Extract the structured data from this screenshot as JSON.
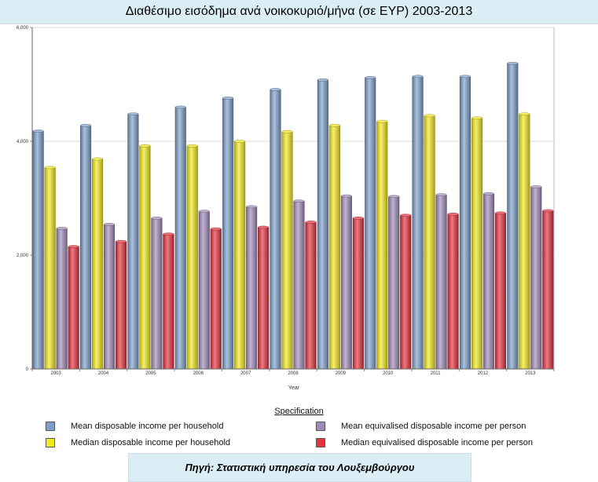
{
  "header": {
    "title": "Διαθέσιμο εισόδημα ανά νοικοκυριό/μήνα (σε ΕΥΡ) 2003-2013"
  },
  "chart_data": {
    "type": "bar",
    "title": "Διαθέσιμο εισόδημα ανά νοικοκυριό/μήνα (σε ΕΥΡ) 2003-2013",
    "xlabel": "Year",
    "ylabel": "",
    "ylim": [
      0,
      6000
    ],
    "yticks": [
      0,
      2000,
      4000,
      6000
    ],
    "ytick_labels": [
      "0",
      "2,000",
      "4,000",
      "6,000"
    ],
    "grid": true,
    "legend_title": "Specification",
    "legend_position": "bottom",
    "categories": [
      "2003",
      "2004",
      "2005",
      "2006",
      "2007",
      "2008",
      "2009",
      "2010",
      "2011",
      "2012",
      "2013"
    ],
    "series": [
      {
        "name": "Mean disposable income per household",
        "color": "#7e9fc9",
        "values": [
          4180,
          4280,
          4480,
          4600,
          4760,
          4910,
          5080,
          5120,
          5140,
          5140,
          5370
        ]
      },
      {
        "name": "Median disposable income per household",
        "color": "#f2e81f",
        "values": [
          3540,
          3690,
          3920,
          3920,
          4000,
          4170,
          4280,
          4350,
          4450,
          4410,
          4480
        ]
      },
      {
        "name": "Mean equivalised disposable income per person",
        "color": "#a08bb8",
        "values": [
          2470,
          2540,
          2650,
          2770,
          2850,
          2950,
          3040,
          3030,
          3060,
          3080,
          3200
        ]
      },
      {
        "name": "Median equivalised disposable income per person",
        "color": "#e5333e",
        "values": [
          2150,
          2240,
          2370,
          2460,
          2490,
          2580,
          2650,
          2700,
          2720,
          2740,
          2780
        ]
      }
    ]
  },
  "legend": {
    "title": "Specification",
    "items": [
      {
        "label": "Mean disposable income per household",
        "color": "#7e9fc9"
      },
      {
        "label": "Median disposable income per household",
        "color": "#f2e81f"
      },
      {
        "label": "Mean equivalised disposable income per person",
        "color": "#a08bb8"
      },
      {
        "label": "Median equivalised disposable income per person",
        "color": "#e5333e"
      }
    ]
  },
  "source": {
    "text": "Πηγή: Στατιστική υπηρεσία του Λουξεμβούργου"
  }
}
